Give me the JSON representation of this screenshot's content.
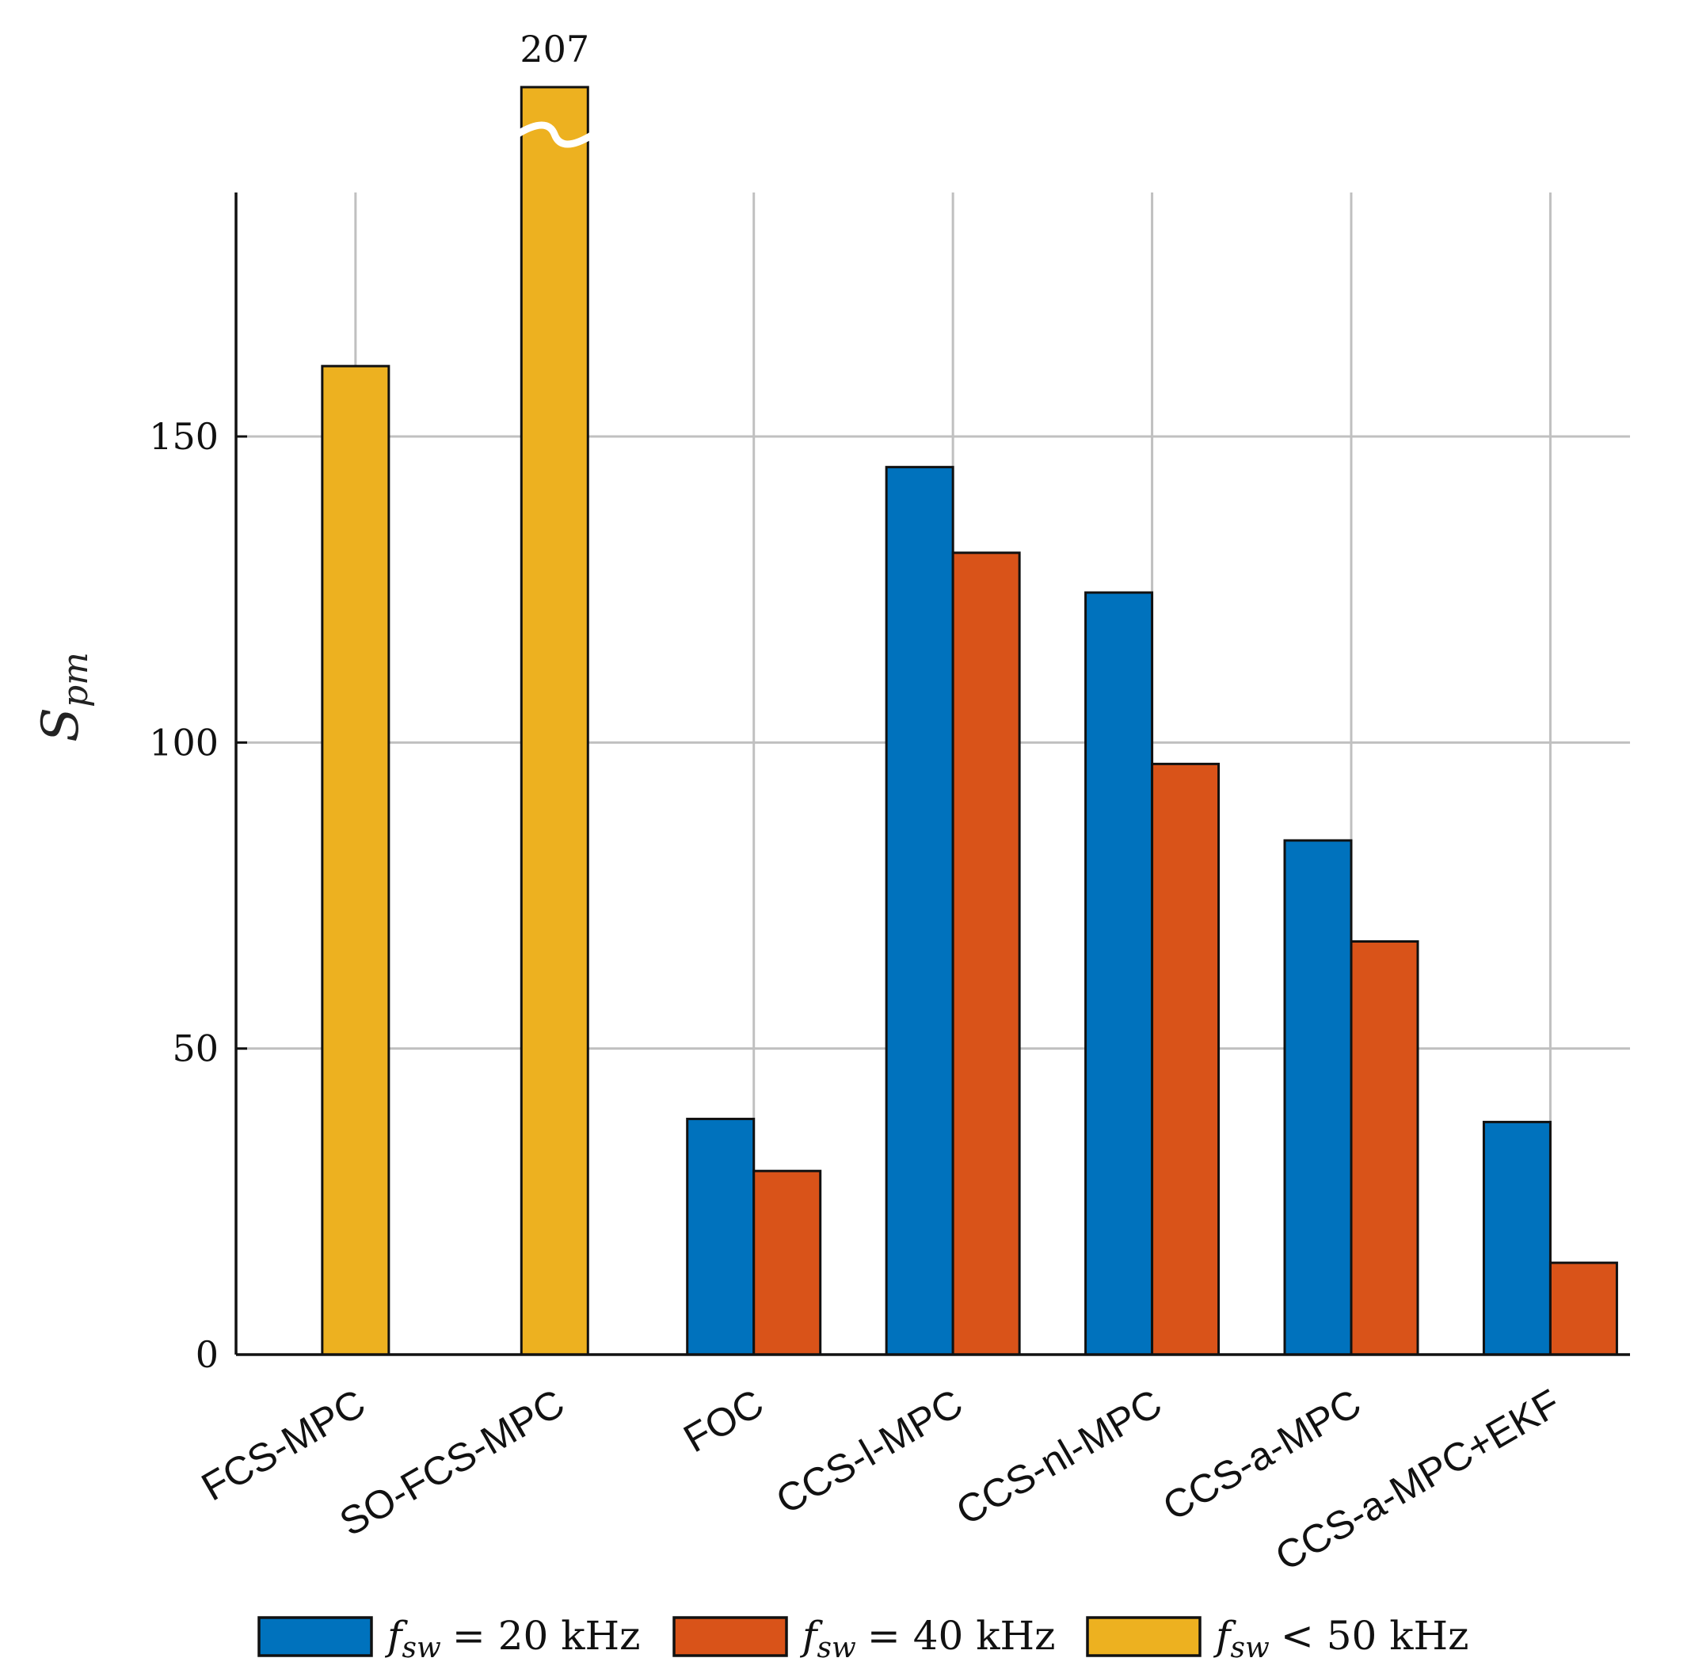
{
  "chart_data": {
    "type": "bar",
    "categories": [
      "FCS-MPC",
      "SO-FCS-MPC",
      "FOC",
      "CCS-l-MPC",
      "CCS-nl-MPC",
      "CCS-a-MPC",
      "CCS-a-MPC+EKF"
    ],
    "series": [
      {
        "name": "f_sw = 20 kHz",
        "color": "#0072BD",
        "values": [
          null,
          null,
          38.5,
          145,
          124.5,
          84,
          38
        ]
      },
      {
        "name": "f_sw = 40 kHz",
        "color": "#D95319",
        "values": [
          null,
          null,
          30,
          131,
          96.5,
          67.5,
          15
        ]
      },
      {
        "name": "f_sw < 50 kHz",
        "color": "#EDB120",
        "values": [
          161.5,
          207,
          null,
          null,
          null,
          null,
          null
        ]
      }
    ],
    "legend": [
      {
        "var": "f",
        "sub": "sw",
        "rel": "=",
        "value": "20 kHz"
      },
      {
        "var": "f",
        "sub": "sw",
        "rel": "=",
        "value": "40 kHz"
      },
      {
        "var": "f",
        "sub": "sw",
        "rel": "<",
        "value": "50 kHz"
      }
    ],
    "ylabel": {
      "main": "S",
      "sub": "pm"
    },
    "ylim": [
      0,
      190
    ],
    "yticks": [
      0,
      50,
      100,
      150
    ],
    "grid": true,
    "legend_position": "bottom",
    "annotations": [
      {
        "category": "SO-FCS-MPC",
        "text": "207",
        "note": "axis break"
      }
    ]
  }
}
